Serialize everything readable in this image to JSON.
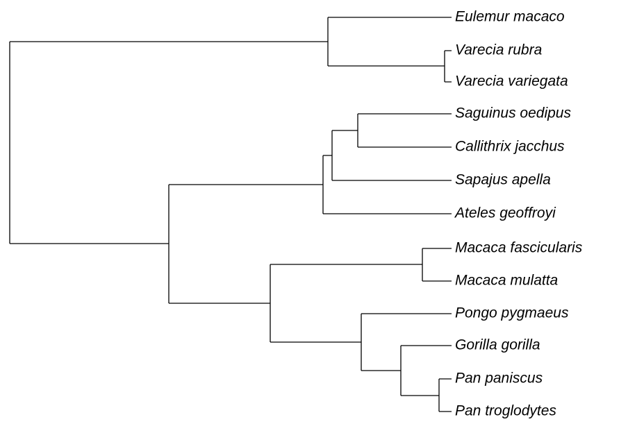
{
  "tree": {
    "leaves": [
      "Eulemur macaco",
      "Varecia rubra",
      "Varecia variegata",
      "Saguinus oedipus",
      "Callithrix jacchus",
      "Sapajus apella",
      "Ateles geoffroyi",
      "Macaca fascicularis",
      "Macaca mulatta",
      "Pongo pygmaeus",
      "Gorilla gorilla",
      "Pan paniscus",
      "Pan troglodytes"
    ]
  }
}
